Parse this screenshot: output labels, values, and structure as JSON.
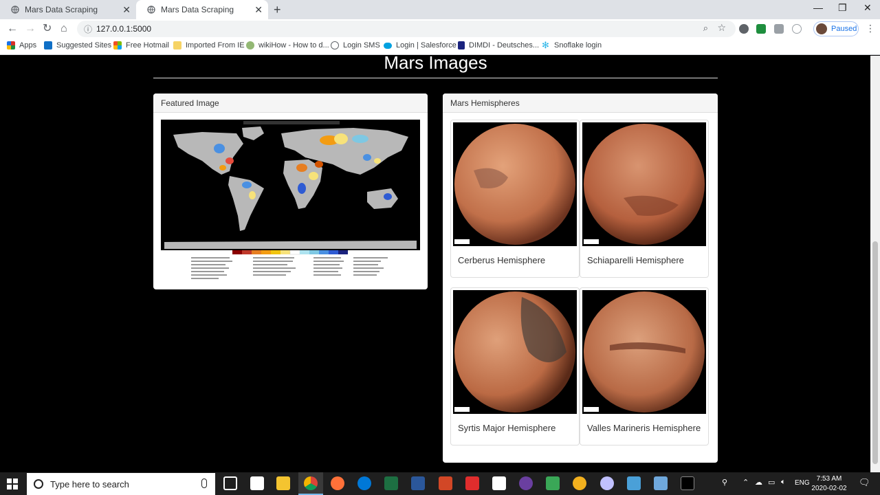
{
  "browser": {
    "tabs": [
      {
        "title": "Mars Data Scraping",
        "active": false
      },
      {
        "title": "Mars Data Scraping",
        "active": true
      }
    ],
    "url": "127.0.0.1:5000",
    "profile_label": "Paused",
    "bookmarks": [
      {
        "label": "Apps",
        "icon": "apps-grid-icon",
        "color": "#d93025"
      },
      {
        "label": "Suggested Sites",
        "icon": "bing-icon",
        "color": "#0f6fc6"
      },
      {
        "label": "Free Hotmail",
        "icon": "windows-icon",
        "color": "#f25022"
      },
      {
        "label": "Imported From IE",
        "icon": "folder-icon",
        "color": "#f6d365"
      },
      {
        "label": "wikiHow - How to d...",
        "icon": "wikihow-icon",
        "color": "#93b874"
      },
      {
        "label": "Login SMS",
        "icon": "globe-icon",
        "color": "#5f6368"
      },
      {
        "label": "Login | Salesforce",
        "icon": "salesforce-icon",
        "color": "#00a1e0"
      },
      {
        "label": "DIMDI - Deutsches...",
        "icon": "dimdi-icon",
        "color": "#1a237e"
      },
      {
        "label": "Snoflake login",
        "icon": "snowflake-icon",
        "color": "#29b5e8"
      }
    ]
  },
  "page": {
    "title": "Mars Images",
    "featured": {
      "heading": "Featured Image"
    },
    "hemispheres": {
      "heading": "Mars Hemispheres",
      "items": [
        {
          "title": "Cerberus Hemisphere"
        },
        {
          "title": "Schiaparelli Hemisphere"
        },
        {
          "title": "Syrtis Major Hemisphere"
        },
        {
          "title": "Valles Marineris Hemisphere"
        }
      ]
    }
  },
  "taskbar": {
    "search_placeholder": "Type here to search",
    "language": "ENG",
    "time": "7:53 AM",
    "date": "2020-02-02"
  },
  "colors": {
    "page_bg": "#000000",
    "panel_bg": "#ffffff",
    "panel_head_bg": "#f5f5f5",
    "mars": "#c1704a"
  }
}
